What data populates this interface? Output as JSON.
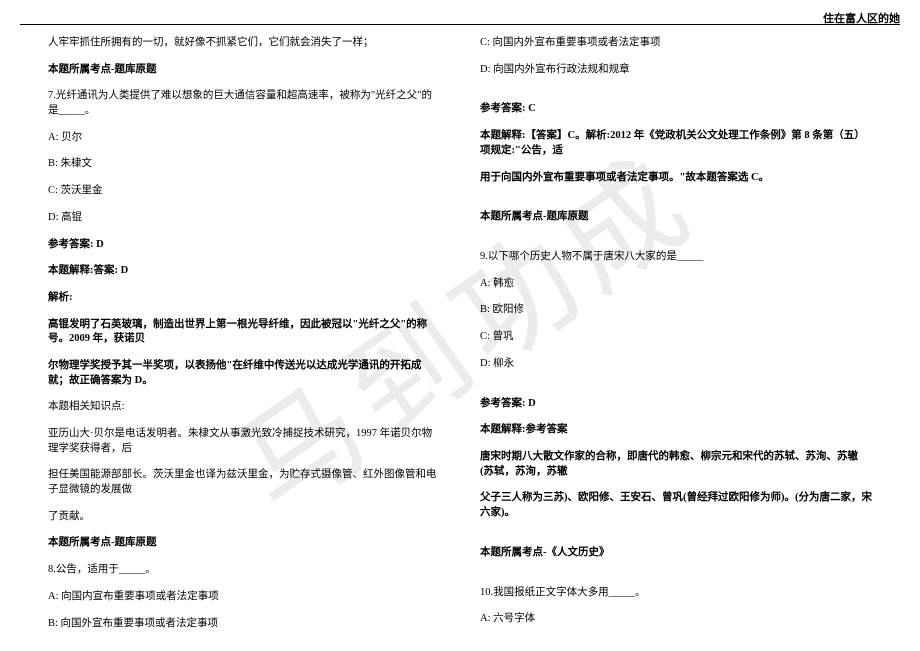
{
  "header": {
    "right_text": "住在富人区的她"
  },
  "watermark": {
    "text": "马到功成"
  },
  "left_column": {
    "lines": [
      {
        "text": "人牢牢抓住所拥有的一切，就好像不抓紧它们，它们就会消失了一样；",
        "bold": false
      },
      {
        "text": "",
        "spacer": "md"
      },
      {
        "text": "本题所属考点-题库原题",
        "bold": true
      },
      {
        "text": "",
        "spacer": "md"
      },
      {
        "text": "7.光纤通讯为人类提供了难以想象的巨大通信容量和超高速率，被称为\"光纤之父\"的是_____。",
        "bold": false
      },
      {
        "text": "A: 贝尔",
        "bold": false
      },
      {
        "text": "B: 朱棣文",
        "bold": false
      },
      {
        "text": "C: 茨沃里金",
        "bold": false
      },
      {
        "text": "D: 高锟",
        "bold": false
      },
      {
        "text": "",
        "spacer": "md"
      },
      {
        "text": "参考答案: D",
        "bold": true
      },
      {
        "text": "本题解释:答案: D",
        "bold": true
      },
      {
        "text": "解析:",
        "bold": true
      },
      {
        "text": "高锟发明了石英玻璃，制造出世界上第一根光导纤维，因此被冠以\"光纤之父\"的称号。2009 年，获诺贝",
        "bold": true
      },
      {
        "text": "尔物理学奖授予其一半奖项，以表扬他\"在纤维中传送光以达成光学通讯的开拓成就；故正确答案为 D。",
        "bold": true
      },
      {
        "text": "本题相关知识点:",
        "bold": false
      },
      {
        "text": "亚历山大·贝尔是电话发明者。朱棣文从事激光致冷捕捉技术研究，1997 年诺贝尔物理学奖获得者，后",
        "bold": false
      },
      {
        "text": "担任美国能源部部长。茨沃里金也译为兹沃里金，为贮存式摄像管、红外图像管和电子显微镜的发展做",
        "bold": false
      },
      {
        "text": "了贡献。",
        "bold": false
      },
      {
        "text": "",
        "spacer": "md"
      },
      {
        "text": "本题所属考点-题库原题",
        "bold": true
      },
      {
        "text": "",
        "spacer": "md"
      },
      {
        "text": "8.公告，适用于_____。",
        "bold": false
      },
      {
        "text": "A: 向国内宣布重要事项或者法定事项",
        "bold": false
      },
      {
        "text": "B: 向国外宣布重要事项或者法定事项",
        "bold": false
      }
    ]
  },
  "right_column": {
    "lines": [
      {
        "text": "C: 向国内外宣布重要事项或者法定事项",
        "bold": false
      },
      {
        "text": "D: 向国内外宣布行政法规和规章",
        "bold": false
      },
      {
        "text": "",
        "spacer": "md"
      },
      {
        "text": "参考答案: C",
        "bold": true
      },
      {
        "text": "本题解释:【答案】C。解析:2012 年《党政机关公文处理工作条例》第 8 条第（五）项规定:\"公告，适",
        "bold": true
      },
      {
        "text": "用于向国内外宣布重要事项或者法定事项。\"故本题答案选 C。",
        "bold": true
      },
      {
        "text": "",
        "spacer": "md"
      },
      {
        "text": "本题所属考点-题库原题",
        "bold": true
      },
      {
        "text": "",
        "spacer": "md"
      },
      {
        "text": "9.以下哪个历史人物不属于唐宋八大家的是_____",
        "bold": false
      },
      {
        "text": "A: 韩愈",
        "bold": false
      },
      {
        "text": "B: 欧阳修",
        "bold": false
      },
      {
        "text": "C: 曾巩",
        "bold": false
      },
      {
        "text": "D: 柳永",
        "bold": false
      },
      {
        "text": "",
        "spacer": "md"
      },
      {
        "text": "参考答案: D",
        "bold": true
      },
      {
        "text": "本题解释:参考答案",
        "bold": true
      },
      {
        "text": "唐宋时期八大散文作家的合称，即唐代的韩愈、柳宗元和宋代的苏轼、苏洵、苏辙 (苏轼，苏洵，苏辙",
        "bold": true
      },
      {
        "text": "父子三人称为三苏)、欧阳修、王安石、曾巩(曾经拜过欧阳修为师)。(分为唐二家，宋六家)。",
        "bold": true
      },
      {
        "text": "",
        "spacer": "md"
      },
      {
        "text": "本题所属考点-《人文历史》",
        "bold": true
      },
      {
        "text": "",
        "spacer": "md"
      },
      {
        "text": "10.我国报纸正文字体大多用_____。",
        "bold": false
      },
      {
        "text": "A: 六号字体",
        "bold": false
      }
    ]
  },
  "colors": {
    "text": "#000000",
    "background": "#ffffff",
    "watermark": "rgba(180, 180, 180, 0.25)"
  },
  "fonts": {
    "body_size": 10.5,
    "watermark_size": 120
  }
}
